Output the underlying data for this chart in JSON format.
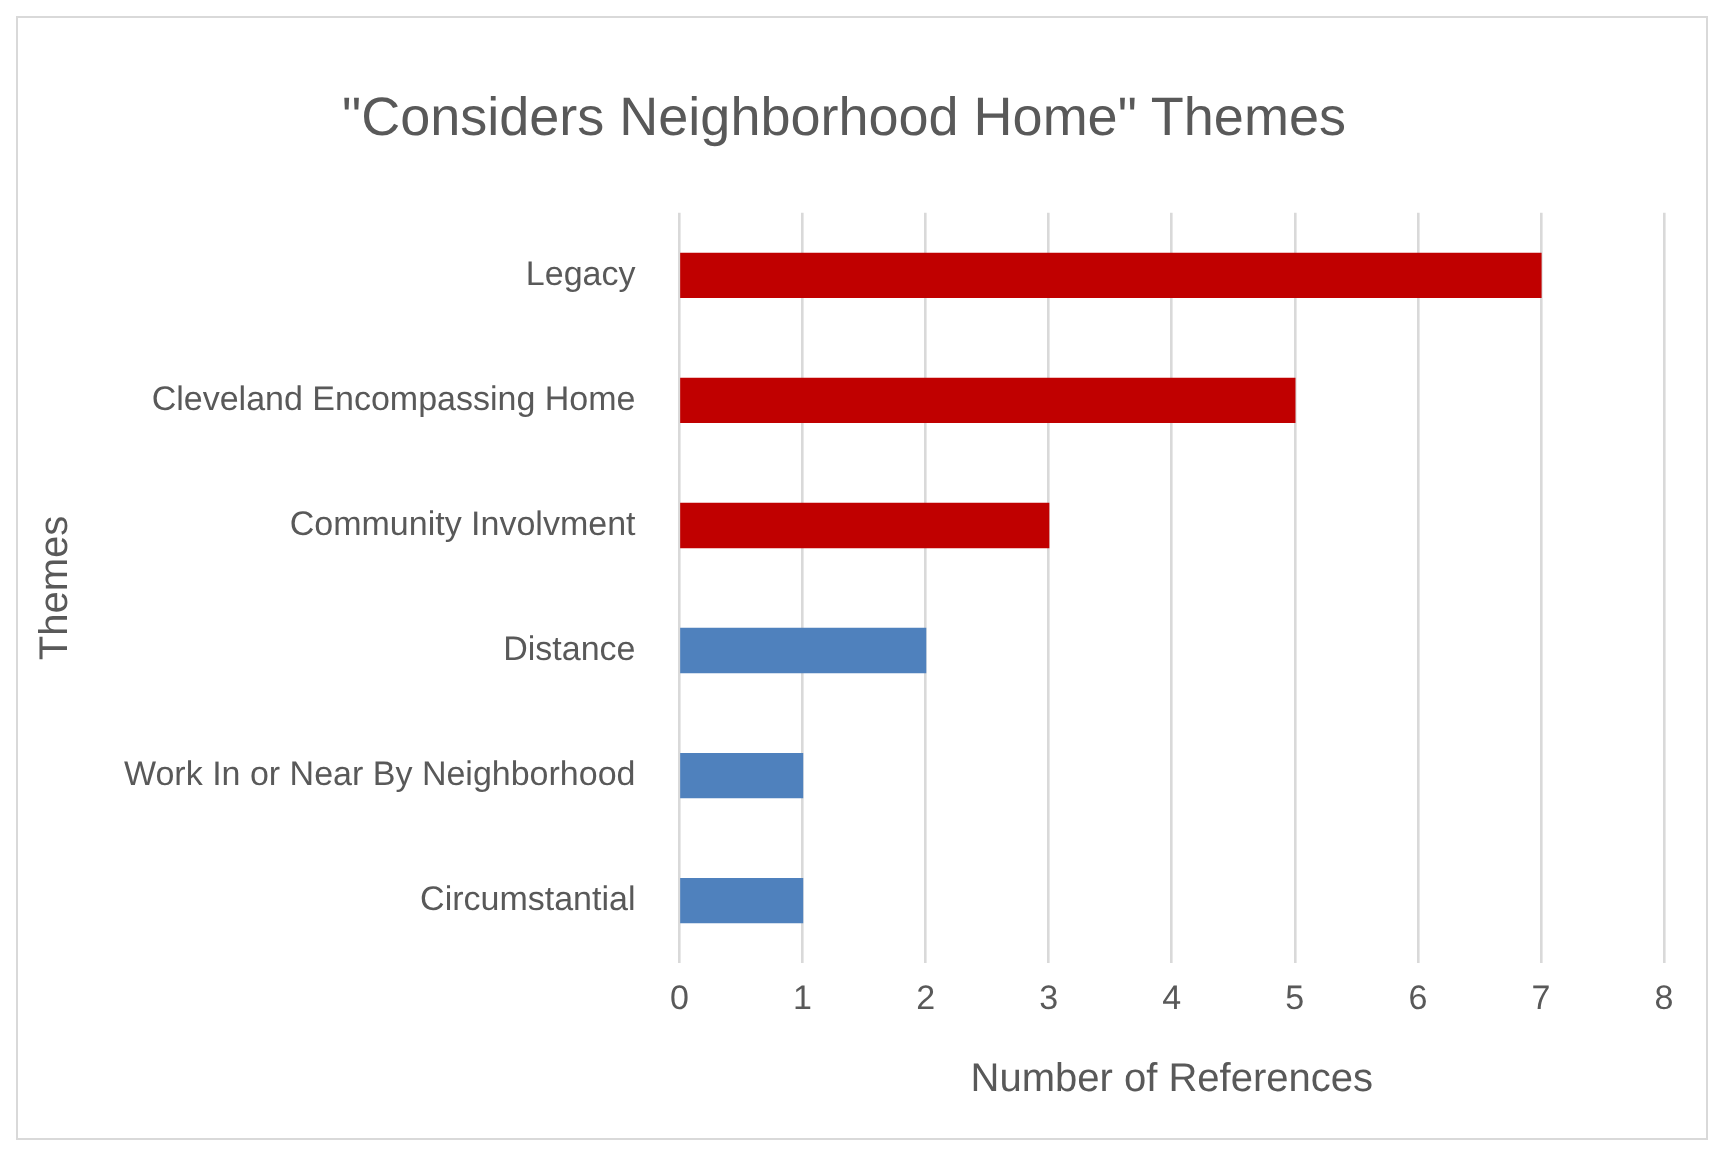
{
  "chart_data": {
    "type": "bar",
    "orientation": "horizontal",
    "title": "\"Considers Neighborhood Home\" Themes",
    "xlabel": "Number of References",
    "ylabel": "Themes",
    "categories": [
      "Legacy",
      "Cleveland Encompassing Home",
      "Community Involvment",
      "Distance",
      "Work In or Near By Neighborhood",
      "Circumstantial"
    ],
    "values": [
      7,
      5,
      3,
      2,
      1,
      1
    ],
    "colors": [
      "#c00000",
      "#c00000",
      "#c00000",
      "#4f81bd",
      "#4f81bd",
      "#4f81bd"
    ],
    "xlim": [
      0,
      8
    ],
    "xticks": [
      0,
      1,
      2,
      3,
      4,
      5,
      6,
      7,
      8
    ],
    "grid": "x"
  }
}
